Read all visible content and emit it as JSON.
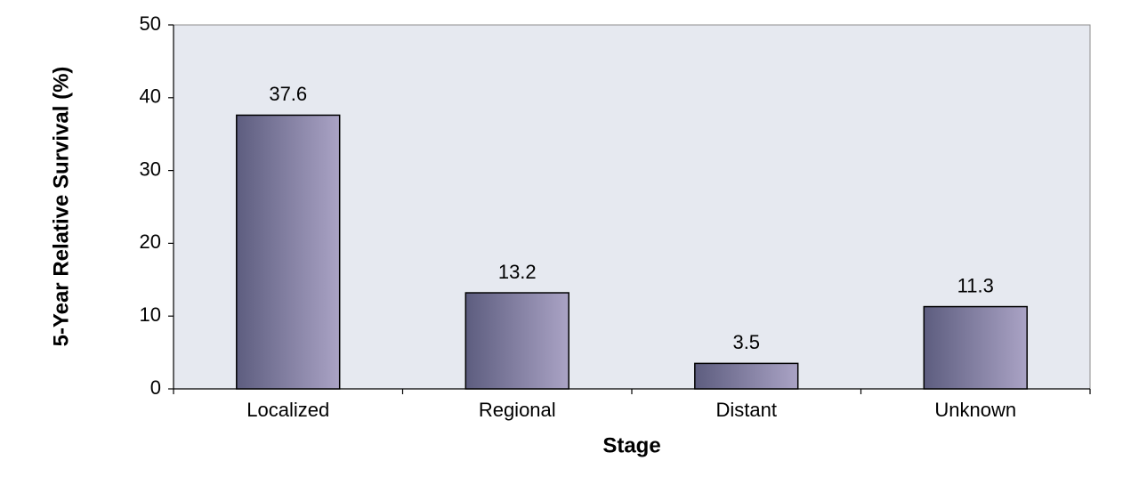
{
  "chart_data": {
    "type": "bar",
    "x_label": "Stage",
    "y_label": "5-Year Relative Survival (%)",
    "categories": [
      "Localized",
      "Regional",
      "Distant",
      "Unknown"
    ],
    "values": [
      37.6,
      13.2,
      3.5,
      11.3
    ],
    "color": [
      "#5d5d7f",
      "#aaa3c5"
    ],
    "ylim": [
      0,
      50
    ],
    "yticks": [
      0,
      10,
      20,
      30,
      40,
      50
    ],
    "grid": false
  }
}
